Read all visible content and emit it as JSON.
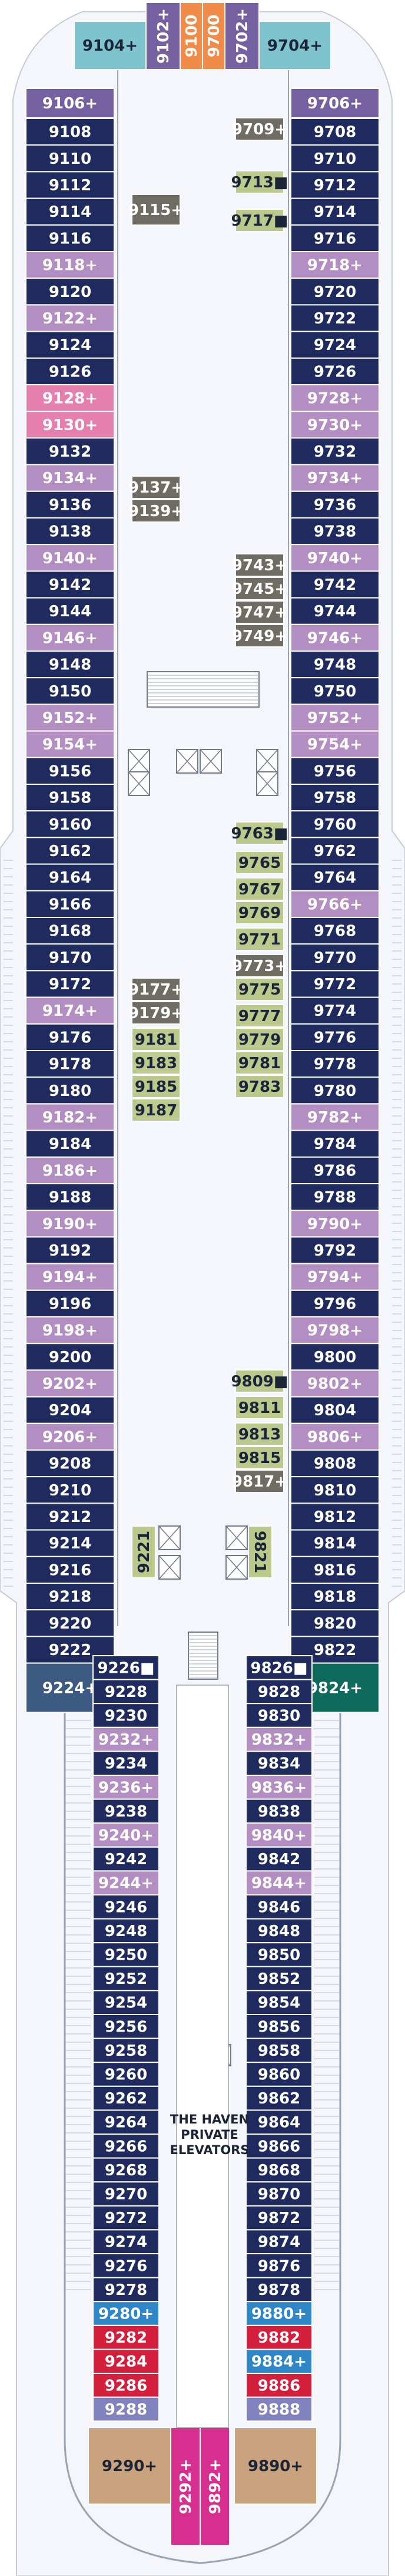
{
  "colors": {
    "navy": "#1f2b5e",
    "lilac": "#b38ec2",
    "pink": "#e47fae",
    "grey": "#6f6c63",
    "olive": "#bcc98c",
    "teal": "#0e6a5d",
    "slate": "#3c5a82",
    "teal_light": "#7fc3cf",
    "purple": "#7560a2",
    "orange": "#f08b4a",
    "red": "#d41f3c",
    "blue": "#2f86c6",
    "tan": "#c9a27e",
    "magenta": "#d72f8f",
    "periwinkle": "#8083bd"
  },
  "legend_symbols": {
    "plus": "+",
    "square": "■"
  },
  "forward_cabins": [
    {
      "label": "9104+"
    },
    {
      "label": "9102+"
    },
    {
      "label": "9100"
    },
    {
      "label": "9700"
    },
    {
      "label": "9702+"
    },
    {
      "label": "9704+"
    },
    {
      "label": "9106+"
    },
    {
      "label": "9706+"
    }
  ],
  "left_cabins": [
    "9108",
    "9110",
    "9112",
    "9114",
    "9116",
    "9118+",
    "9120",
    "9122+",
    "9124",
    "9126",
    "9128+",
    "9130+",
    "9132",
    "9134+",
    "9136",
    "9138",
    "9140+",
    "9142",
    "9144",
    "9146+",
    "9148",
    "9150",
    "9152+",
    "9154+",
    "9156",
    "9158",
    "9160",
    "9162",
    "9164",
    "9166",
    "9168",
    "9170",
    "9172",
    "9174+",
    "9176",
    "9178",
    "9180",
    "9182+",
    "9184",
    "9186+",
    "9188",
    "9190+",
    "9192",
    "9194+",
    "9196",
    "9198+",
    "9200",
    "9202+",
    "9204",
    "9206+",
    "9208",
    "9210",
    "9212",
    "9214",
    "9216",
    "9218",
    "9220",
    "9222",
    "9224+"
  ],
  "right_cabins": [
    "9708",
    "9710",
    "9712",
    "9714",
    "9716",
    "9718+",
    "9720",
    "9722",
    "9724",
    "9726",
    "9728+",
    "9730+",
    "9732",
    "9734+",
    "9736",
    "9738",
    "9740+",
    "9742",
    "9744",
    "9746+",
    "9748",
    "9750",
    "9752+",
    "9754+",
    "9756",
    "9758",
    "9760",
    "9762",
    "9764",
    "9766+",
    "9768",
    "9770",
    "9772",
    "9774",
    "9776",
    "9778",
    "9780",
    "9782+",
    "9784",
    "9786",
    "9788",
    "9790+",
    "9792",
    "9794+",
    "9796",
    "9798+",
    "9800",
    "9802+",
    "9804",
    "9806+",
    "9808",
    "9810",
    "9812",
    "9814",
    "9816",
    "9818",
    "9820",
    "9822",
    "9824+"
  ],
  "inner_left_cabins": [
    {
      "label": "9115+"
    },
    {
      "label": "9137+"
    },
    {
      "label": "9139+"
    },
    {
      "label": "9177+"
    },
    {
      "label": "9179+"
    },
    {
      "label": "9181"
    },
    {
      "label": "9183"
    },
    {
      "label": "9185"
    },
    {
      "label": "9187"
    },
    {
      "label": "9221"
    }
  ],
  "inner_right_cabins": [
    {
      "label": "9709+"
    },
    {
      "label": "9713■"
    },
    {
      "label": "9717■"
    },
    {
      "label": "9743+"
    },
    {
      "label": "9745+"
    },
    {
      "label": "9747+"
    },
    {
      "label": "9749+"
    },
    {
      "label": "9763■"
    },
    {
      "label": "9765"
    },
    {
      "label": "9767"
    },
    {
      "label": "9769"
    },
    {
      "label": "9771"
    },
    {
      "label": "9773+"
    },
    {
      "label": "9775"
    },
    {
      "label": "9777"
    },
    {
      "label": "9779"
    },
    {
      "label": "9781"
    },
    {
      "label": "9783"
    },
    {
      "label": "9809■"
    },
    {
      "label": "9811"
    },
    {
      "label": "9813"
    },
    {
      "label": "9815"
    },
    {
      "label": "9817+"
    },
    {
      "label": "9821"
    }
  ],
  "aft_left_cabins": [
    "9226■",
    "9228",
    "9230",
    "9232+",
    "9234",
    "9236+",
    "9238",
    "9240+",
    "9242",
    "9244+",
    "9246",
    "9248",
    "9250",
    "9252",
    "9254",
    "9256",
    "9258",
    "9260",
    "9262",
    "9264",
    "9266",
    "9268",
    "9270",
    "9272",
    "9274",
    "9276",
    "9278",
    "9280+",
    "9282",
    "9284",
    "9286",
    "9288"
  ],
  "aft_right_cabins": [
    "9826■",
    "9828",
    "9830",
    "9832+",
    "9834",
    "9836+",
    "9838",
    "9840+",
    "9842",
    "9844+",
    "9846",
    "9848",
    "9850",
    "9852",
    "9854",
    "9856",
    "9858",
    "9860",
    "9862",
    "9864",
    "9866",
    "9868",
    "9870",
    "9872",
    "9874",
    "9876",
    "9878",
    "9880+",
    "9882",
    "9884+",
    "9886",
    "9888"
  ],
  "stern_cabins": [
    {
      "label": "9290+"
    },
    {
      "label": "9292+"
    },
    {
      "label": "9892+"
    },
    {
      "label": "9890+"
    }
  ],
  "elevator_lines": [
    "THE HAVEN",
    "PRIVATE",
    "ELEVATORS"
  ]
}
